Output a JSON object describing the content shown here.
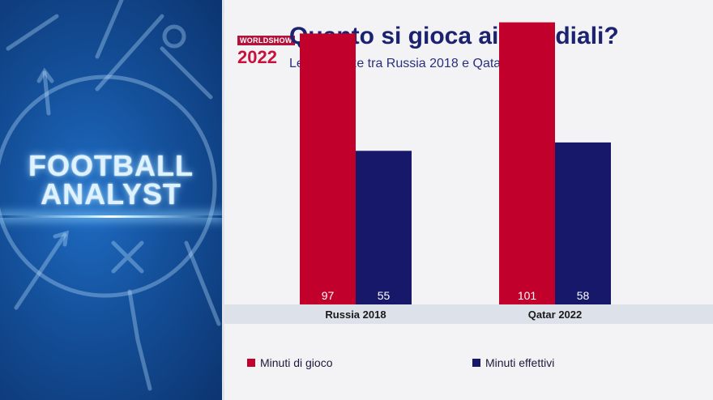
{
  "panel": {
    "line1": "FOOTBALL",
    "line2": "ANALYST"
  },
  "logo": {
    "top": "WORLDSHOW",
    "year": "2022"
  },
  "colors": {
    "minuti_di_gioco": "#c1002b",
    "minuti_effettivi": "#17186a"
  },
  "chart_data": {
    "type": "bar",
    "title": "Quanto si gioca ai Mondiali?",
    "subtitle": "Le differenze tra Russia 2018 e Qatar 2022",
    "categories": [
      "Russia 2018",
      "Qatar 2022"
    ],
    "series": [
      {
        "name": "Minuti di gioco",
        "values": [
          97,
          101
        ]
      },
      {
        "name": "Minuti effettivi",
        "values": [
          55,
          58
        ]
      }
    ],
    "ylim": [
      0,
      109
    ],
    "grid": false,
    "legend": "bottom"
  }
}
